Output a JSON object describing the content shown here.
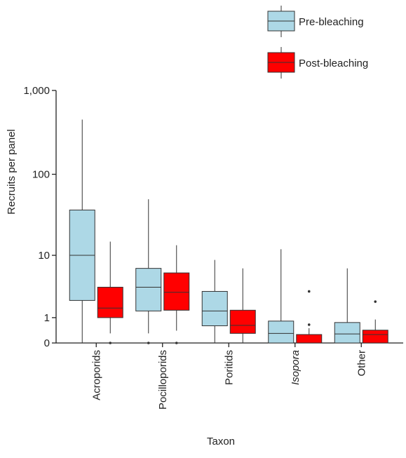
{
  "chart_data": {
    "type": "boxplot",
    "xlabel": "Taxon",
    "ylabel": "Recruits per panel",
    "yscale": "log(1+y)",
    "ylim": [
      0,
      1000
    ],
    "yticks": [
      {
        "value": 0,
        "label": "0"
      },
      {
        "value": 1,
        "label": "1"
      },
      {
        "value": 10,
        "label": "10"
      },
      {
        "value": 100,
        "label": "100"
      },
      {
        "value": 1000,
        "label": "1,000"
      }
    ],
    "categories": [
      "Acroporids",
      "Pocilloporids",
      "Poritids",
      "Isopora",
      "Other"
    ],
    "italic_categories": [
      "Isopora"
    ],
    "legend": {
      "position": "top-right"
    },
    "series": [
      {
        "name": "Pre-bleaching",
        "color": "#add8e6",
        "boxes": [
          {
            "whisker_low": 0,
            "q1": 2.2,
            "median": 10,
            "q3": 37,
            "whisker_high": 450,
            "outliers": []
          },
          {
            "whisker_low": 0.3,
            "q1": 1.4,
            "median": 3.6,
            "q3": 6.7,
            "whisker_high": 50,
            "outliers": [
              0
            ]
          },
          {
            "whisker_low": 0,
            "q1": 0.6,
            "median": 1.4,
            "q3": 3.1,
            "whisker_high": 8.7,
            "outliers": []
          },
          {
            "whisker_low": 0,
            "q1": 0,
            "median": 0.3,
            "q3": 0.82,
            "whisker_high": 12,
            "outliers": []
          },
          {
            "whisker_low": 0,
            "q1": 0,
            "median": 0.28,
            "q3": 0.75,
            "whisker_high": 6.7,
            "outliers": []
          }
        ]
      },
      {
        "name": "Post-bleaching",
        "color": "#ff0000",
        "boxes": [
          {
            "whisker_low": 0.3,
            "q1": 1.0,
            "median": 1.6,
            "q3": 3.6,
            "whisker_high": 15,
            "outliers": [
              0
            ]
          },
          {
            "whisker_low": 0.4,
            "q1": 1.45,
            "median": 3.0,
            "q3": 5.8,
            "whisker_high": 13.5,
            "outliers": [
              0
            ]
          },
          {
            "whisker_low": 0,
            "q1": 0.3,
            "median": 0.62,
            "q3": 1.45,
            "whisker_high": 6.7,
            "outliers": []
          },
          {
            "whisker_low": 0,
            "q1": 0,
            "median": 0,
            "q3": 0.26,
            "whisker_high": 0.5,
            "outliers": [
              0.65,
              3.1
            ]
          },
          {
            "whisker_low": 0,
            "q1": 0,
            "median": 0.26,
            "q3": 0.42,
            "whisker_high": 0.9,
            "outliers": [
              2.1
            ]
          }
        ]
      }
    ]
  }
}
